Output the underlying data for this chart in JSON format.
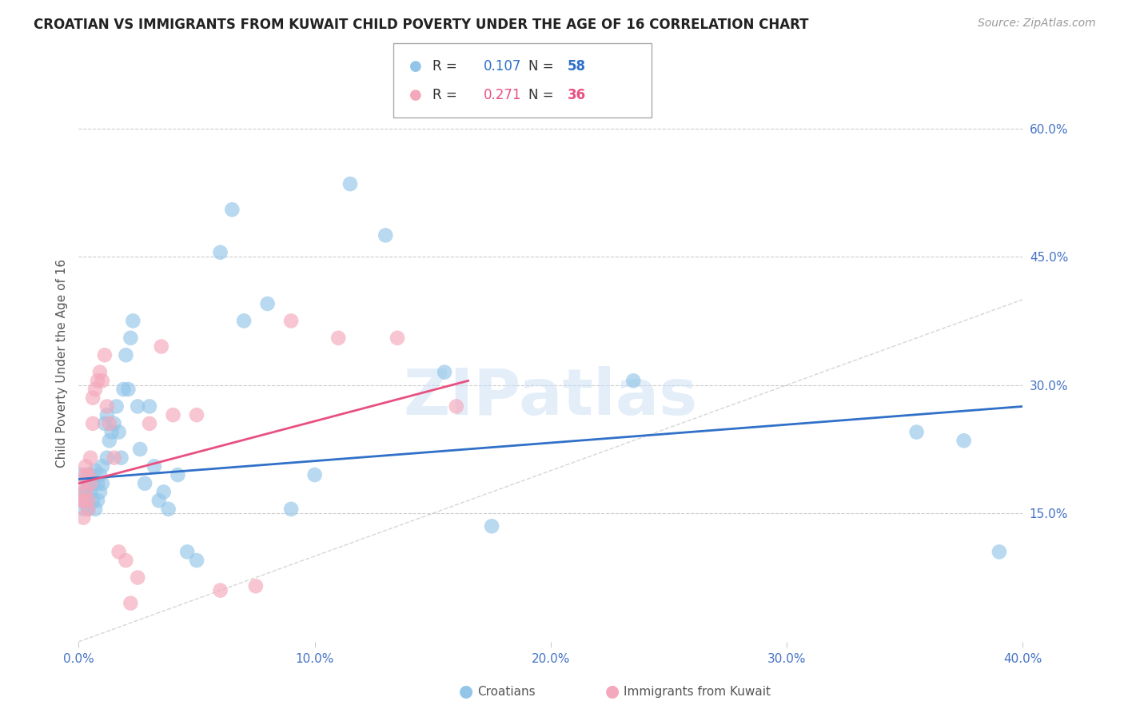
{
  "title": "CROATIAN VS IMMIGRANTS FROM KUWAIT CHILD POVERTY UNDER THE AGE OF 16 CORRELATION CHART",
  "source": "Source: ZipAtlas.com",
  "ylabel": "Child Poverty Under the Age of 16",
  "xlim": [
    0.0,
    0.4
  ],
  "ylim": [
    0.0,
    0.65
  ],
  "ytick_vals": [
    0.15,
    0.3,
    0.45,
    0.6
  ],
  "ytick_labels": [
    "15.0%",
    "30.0%",
    "45.0%",
    "60.0%"
  ],
  "xtick_vals": [
    0.0,
    0.1,
    0.2,
    0.3,
    0.4
  ],
  "xtick_labels": [
    "0.0%",
    "10.0%",
    "20.0%",
    "30.0%",
    "40.0%"
  ],
  "legend_r1": "R = 0.107",
  "legend_n1": "N = 58",
  "legend_r2": "R = 0.271",
  "legend_n2": "N = 36",
  "legend_label1": "Croatians",
  "legend_label2": "Immigrants from Kuwait",
  "blue_color": "#92C5E8",
  "pink_color": "#F4A8BB",
  "blue_line_color": "#3070C8",
  "pink_line_color": "#E85080",
  "axis_label_color": "#4472C4",
  "watermark_color": "#C8DFF5",
  "watermark_text": "ZIPatlas",
  "blue_dots_x": [
    0.001,
    0.002,
    0.002,
    0.003,
    0.003,
    0.004,
    0.004,
    0.005,
    0.005,
    0.006,
    0.006,
    0.007,
    0.007,
    0.008,
    0.008,
    0.009,
    0.009,
    0.01,
    0.01,
    0.011,
    0.012,
    0.012,
    0.013,
    0.014,
    0.015,
    0.016,
    0.017,
    0.018,
    0.019,
    0.02,
    0.021,
    0.022,
    0.023,
    0.025,
    0.026,
    0.028,
    0.03,
    0.032,
    0.034,
    0.036,
    0.038,
    0.042,
    0.046,
    0.05,
    0.06,
    0.065,
    0.07,
    0.08,
    0.09,
    0.1,
    0.115,
    0.13,
    0.155,
    0.175,
    0.235,
    0.355,
    0.375,
    0.39
  ],
  "blue_dots_y": [
    0.195,
    0.175,
    0.155,
    0.165,
    0.175,
    0.155,
    0.185,
    0.195,
    0.175,
    0.185,
    0.165,
    0.2,
    0.155,
    0.185,
    0.165,
    0.195,
    0.175,
    0.205,
    0.185,
    0.255,
    0.265,
    0.215,
    0.235,
    0.245,
    0.255,
    0.275,
    0.245,
    0.215,
    0.295,
    0.335,
    0.295,
    0.355,
    0.375,
    0.275,
    0.225,
    0.185,
    0.275,
    0.205,
    0.165,
    0.175,
    0.155,
    0.195,
    0.105,
    0.095,
    0.455,
    0.505,
    0.375,
    0.395,
    0.155,
    0.195,
    0.535,
    0.475,
    0.315,
    0.135,
    0.305,
    0.245,
    0.235,
    0.105
  ],
  "pink_dots_x": [
    0.001,
    0.001,
    0.002,
    0.002,
    0.003,
    0.003,
    0.003,
    0.004,
    0.004,
    0.004,
    0.005,
    0.005,
    0.006,
    0.006,
    0.007,
    0.008,
    0.009,
    0.01,
    0.011,
    0.012,
    0.013,
    0.015,
    0.017,
    0.02,
    0.022,
    0.025,
    0.03,
    0.035,
    0.04,
    0.05,
    0.06,
    0.075,
    0.09,
    0.11,
    0.135,
    0.16
  ],
  "pink_dots_y": [
    0.165,
    0.185,
    0.145,
    0.165,
    0.175,
    0.195,
    0.205,
    0.155,
    0.165,
    0.195,
    0.215,
    0.185,
    0.255,
    0.285,
    0.295,
    0.305,
    0.315,
    0.305,
    0.335,
    0.275,
    0.255,
    0.215,
    0.105,
    0.095,
    0.045,
    0.075,
    0.255,
    0.345,
    0.265,
    0.265,
    0.06,
    0.065,
    0.375,
    0.355,
    0.355,
    0.275
  ],
  "blue_line_x": [
    0.0,
    0.4
  ],
  "blue_line_y": [
    0.19,
    0.275
  ],
  "pink_line_x": [
    0.0,
    0.165
  ],
  "pink_line_y": [
    0.185,
    0.305
  ],
  "ref_line_x": [
    0.0,
    0.65
  ],
  "ref_line_y": [
    0.0,
    0.65
  ],
  "grid_color": "#CCCCCC",
  "title_fontsize": 12,
  "tick_fontsize": 11,
  "ylabel_fontsize": 11
}
